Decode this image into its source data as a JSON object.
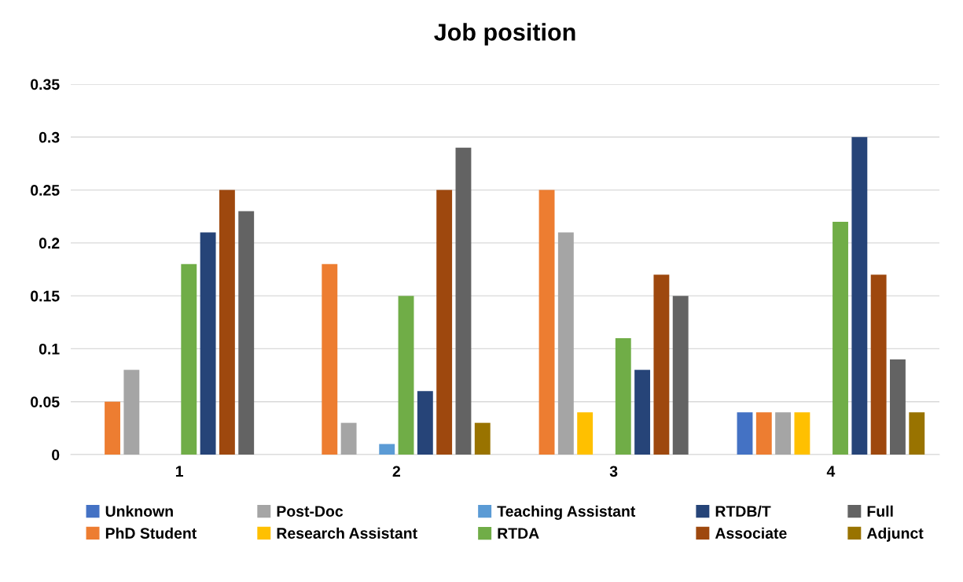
{
  "chart_data": {
    "type": "bar",
    "title": "Job position",
    "categories": [
      "1",
      "2",
      "3",
      "4"
    ],
    "series": [
      {
        "name": "Unknown",
        "color": "#4472c4",
        "values": [
          0,
          0,
          0,
          0.04
        ]
      },
      {
        "name": "PhD Student",
        "color": "#ed7d31",
        "values": [
          0.05,
          0.18,
          0.25,
          0.04
        ]
      },
      {
        "name": "Post-Doc",
        "color": "#a5a5a5",
        "values": [
          0.08,
          0.03,
          0.21,
          0.04
        ]
      },
      {
        "name": "Research Assistant",
        "color": "#ffc000",
        "values": [
          0,
          0,
          0.04,
          0.04
        ]
      },
      {
        "name": "Teaching Assistant",
        "color": "#5b9bd5",
        "values": [
          0,
          0.01,
          0,
          0
        ]
      },
      {
        "name": "RTDA",
        "color": "#70ad47",
        "values": [
          0.18,
          0.15,
          0.11,
          0.22
        ]
      },
      {
        "name": "RTDB/T",
        "color": "#264478",
        "values": [
          0.21,
          0.06,
          0.08,
          0.3
        ]
      },
      {
        "name": "Associate",
        "color": "#9e480e",
        "values": [
          0.25,
          0.25,
          0.17,
          0.17
        ]
      },
      {
        "name": "Full",
        "color": "#636363",
        "values": [
          0.23,
          0.29,
          0.15,
          0.09
        ]
      },
      {
        "name": "Adjunct",
        "color": "#997300",
        "values": [
          0,
          0.03,
          0,
          0.04
        ]
      }
    ],
    "ylim": [
      0,
      0.35
    ],
    "yticks": [
      0,
      0.05,
      0.1,
      0.15,
      0.2,
      0.25,
      0.3,
      0.35
    ],
    "grid": "y",
    "legend": "bottom"
  }
}
